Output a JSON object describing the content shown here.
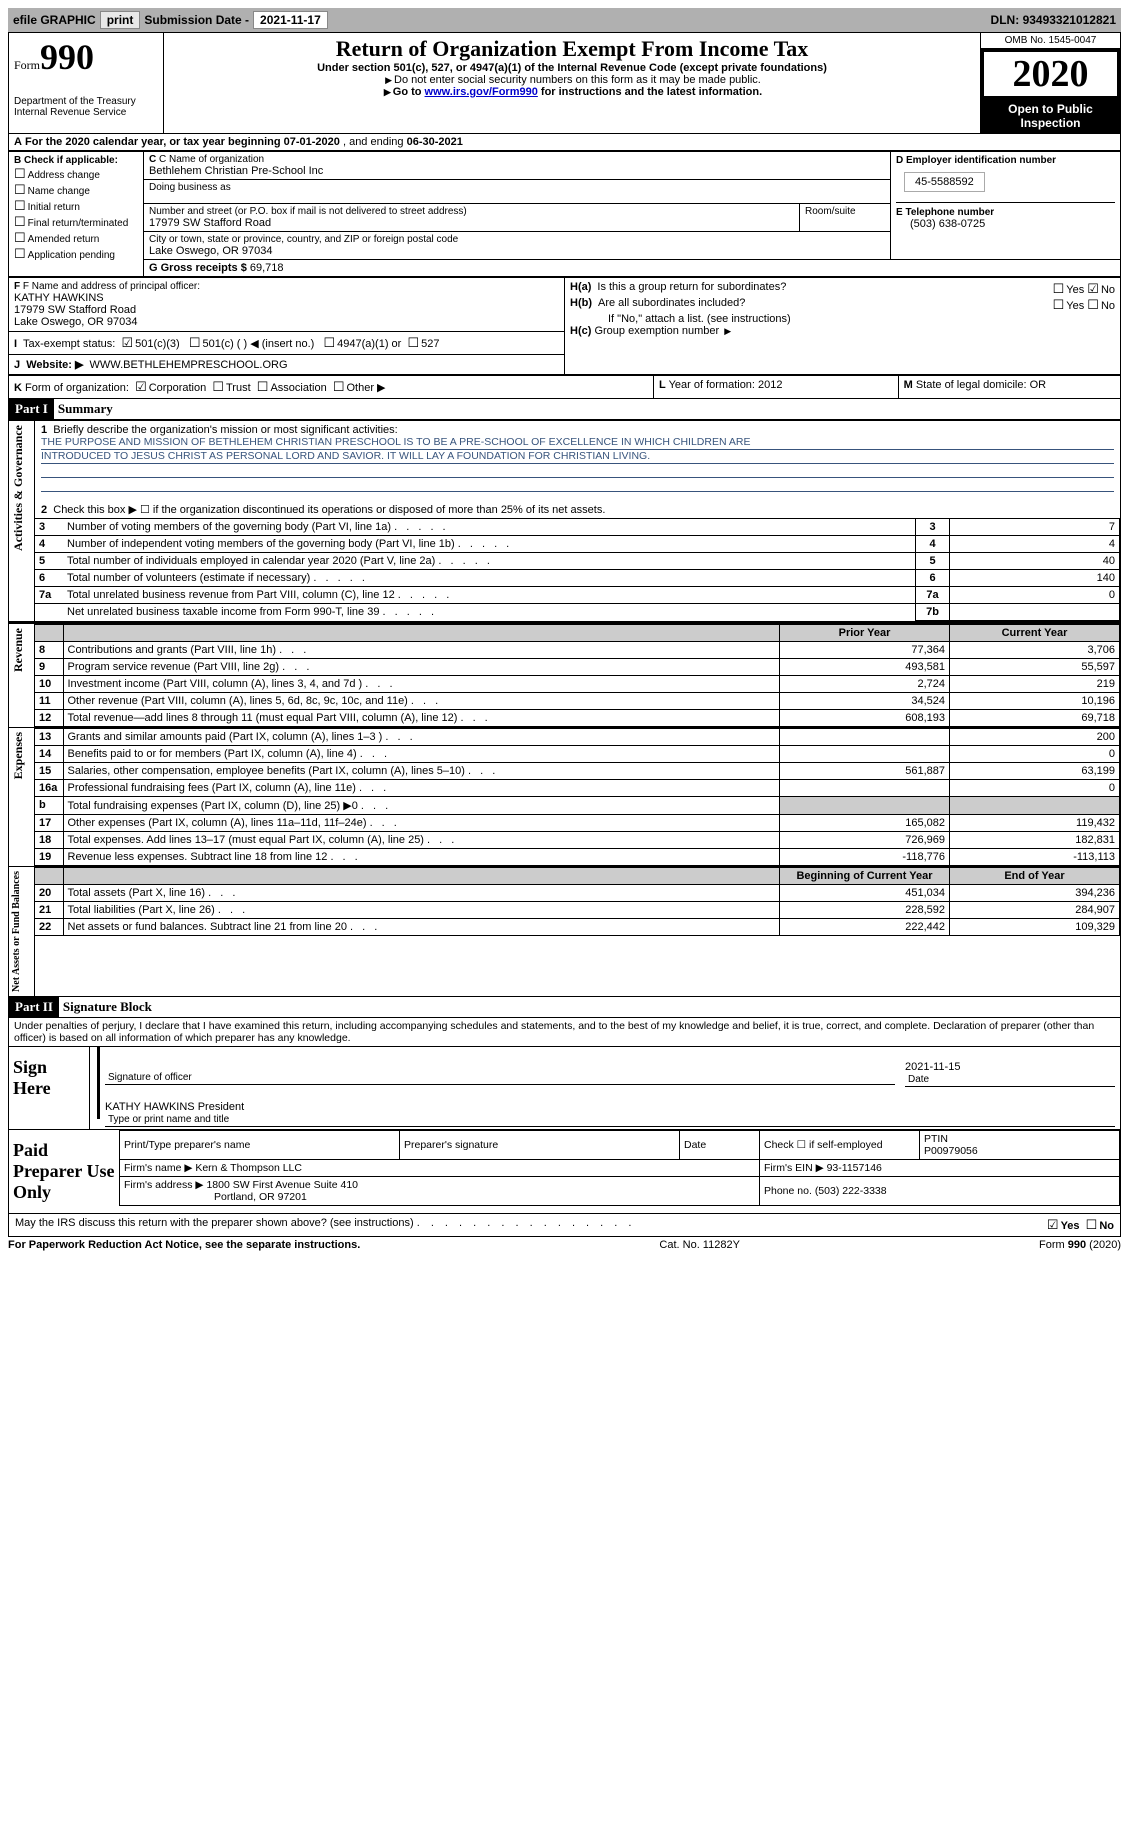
{
  "toolbar": {
    "efile_label": "efile GRAPHIC",
    "print_label": "print",
    "sub_label": "Submission Date -",
    "sub_date": "2021-11-17",
    "dln_label": "DLN:",
    "dln": "93493321012821"
  },
  "header": {
    "form_word": "Form",
    "form_num": "990",
    "dept1": "Department of the Treasury",
    "dept2": "Internal Revenue Service",
    "title": "Return of Organization Exempt From Income Tax",
    "subtitle": "Under section 501(c), 527, or 4947(a)(1) of the Internal Revenue Code (except private foundations)",
    "note1": "Do not enter social security numbers on this form as it may be made public.",
    "note2_a": "Go to ",
    "note2_link": "www.irs.gov/Form990",
    "note2_b": " for instructions and the latest information.",
    "omb_label": "OMB No. 1545-0047",
    "year": "2020",
    "public1": "Open to Public",
    "public2": "Inspection"
  },
  "lineA": {
    "prefix": "A",
    "text_a": "For the 2020 calendar year, or tax year beginning ",
    "begin": "07-01-2020",
    "text_b": " , and ending ",
    "end": "06-30-2021"
  },
  "boxB": {
    "header": "B Check if applicable:",
    "items": [
      "Address change",
      "Name change",
      "Initial return",
      "Final return/terminated",
      "Amended return",
      "Application pending"
    ]
  },
  "boxC": {
    "name_label": "C Name of organization",
    "name": "Bethlehem Christian Pre-School Inc",
    "dba_label": "Doing business as",
    "dba": "",
    "street_label": "Number and street (or P.O. box if mail is not delivered to street address)",
    "room_label": "Room/suite",
    "street": "17979 SW Stafford Road",
    "city_label": "City or town, state or province, country, and ZIP or foreign postal code",
    "city": "Lake Oswego, OR  97034"
  },
  "boxD": {
    "label": "D Employer identification number",
    "value": "45-5588592"
  },
  "boxE": {
    "label": "E Telephone number",
    "value": "(503) 638-0725"
  },
  "boxG": {
    "label": "G Gross receipts $",
    "value": "69,718"
  },
  "boxF": {
    "label": "F Name and address of principal officer:",
    "name": "KATHY HAWKINS",
    "street": "17979 SW Stafford Road",
    "city": "Lake Oswego, OR  97034"
  },
  "boxH": {
    "a_label": "H(a)",
    "a_text": "Is this a group return for subordinates?",
    "a_yes": "Yes",
    "a_no": "No",
    "b_label": "H(b)",
    "b_text": "Are all subordinates included?",
    "b_note": "If \"No,\" attach a list. (see instructions)",
    "c_label": "H(c)",
    "c_text": "Group exemption number"
  },
  "lineI": {
    "label": "I",
    "text": "Tax-exempt status:",
    "opt1": "501(c)(3)",
    "opt2": "501(c) (  ) ◀ (insert no.)",
    "opt3": "4947(a)(1) or",
    "opt4": "527"
  },
  "lineJ": {
    "label": "J",
    "text": "Website: ▶",
    "value": "WWW.BETHLEHEMPRESCHOOL.ORG"
  },
  "lineK": {
    "label": "K",
    "text": "Form of organization:",
    "opts": [
      "Corporation",
      "Trust",
      "Association",
      "Other ▶"
    ]
  },
  "lineL": {
    "label": "L",
    "text": "Year of formation:",
    "value": "2012"
  },
  "lineM": {
    "label": "M",
    "text": "State of legal domicile:",
    "value": "OR"
  },
  "part1": {
    "tag": "Part I",
    "title": "Summary",
    "q1_label": "1",
    "q1_text": "Briefly describe the organization's mission or most significant activities:",
    "mission1": "THE PURPOSE AND MISSION OF BETHLEHEM CHRISTIAN PRESCHOOL IS TO BE A PRE-SCHOOL OF EXCELLENCE IN WHICH CHILDREN ARE",
    "mission2": "INTRODUCED TO JESUS CHRIST AS PERSONAL LORD AND SAVIOR. IT WILL LAY A FOUNDATION FOR CHRISTIAN LIVING.",
    "q2_label": "2",
    "q2_text": "Check this box ▶ ☐  if the organization discontinued its operations or disposed of more than 25% of its net assets.",
    "vert_gov": "Activities & Governance",
    "vert_rev": "Revenue",
    "vert_exp": "Expenses",
    "vert_net": "Net Assets or Fund Balances",
    "col_prior": "Prior Year",
    "col_curr": "Current Year",
    "col_beg": "Beginning of Current Year",
    "col_end": "End of Year",
    "rows_gov": [
      {
        "n": "3",
        "t": "Number of voting members of the governing body (Part VI, line 1a)",
        "box": "3",
        "v": "7"
      },
      {
        "n": "4",
        "t": "Number of independent voting members of the governing body (Part VI, line 1b)",
        "box": "4",
        "v": "4"
      },
      {
        "n": "5",
        "t": "Total number of individuals employed in calendar year 2020 (Part V, line 2a)",
        "box": "5",
        "v": "40"
      },
      {
        "n": "6",
        "t": "Total number of volunteers (estimate if necessary)",
        "box": "6",
        "v": "140"
      },
      {
        "n": "7a",
        "t": "Total unrelated business revenue from Part VIII, column (C), line 12",
        "box": "7a",
        "v": "0"
      },
      {
        "n": "",
        "t": "Net unrelated business taxable income from Form 990-T, line 39",
        "box": "7b",
        "v": ""
      }
    ],
    "rows_rev": [
      {
        "n": "8",
        "t": "Contributions and grants (Part VIII, line 1h)",
        "p": "77,364",
        "c": "3,706"
      },
      {
        "n": "9",
        "t": "Program service revenue (Part VIII, line 2g)",
        "p": "493,581",
        "c": "55,597"
      },
      {
        "n": "10",
        "t": "Investment income (Part VIII, column (A), lines 3, 4, and 7d )",
        "p": "2,724",
        "c": "219"
      },
      {
        "n": "11",
        "t": "Other revenue (Part VIII, column (A), lines 5, 6d, 8c, 9c, 10c, and 11e)",
        "p": "34,524",
        "c": "10,196"
      },
      {
        "n": "12",
        "t": "Total revenue—add lines 8 through 11 (must equal Part VIII, column (A), line 12)",
        "p": "608,193",
        "c": "69,718"
      }
    ],
    "rows_exp": [
      {
        "n": "13",
        "t": "Grants and similar amounts paid (Part IX, column (A), lines 1–3 )",
        "p": "",
        "c": "200"
      },
      {
        "n": "14",
        "t": "Benefits paid to or for members (Part IX, column (A), line 4)",
        "p": "",
        "c": "0"
      },
      {
        "n": "15",
        "t": "Salaries, other compensation, employee benefits (Part IX, column (A), lines 5–10)",
        "p": "561,887",
        "c": "63,199"
      },
      {
        "n": "16a",
        "t": "Professional fundraising fees (Part IX, column (A), line 11e)",
        "p": "",
        "c": "0"
      },
      {
        "n": "b",
        "t": "Total fundraising expenses (Part IX, column (D), line 25) ▶0",
        "p": "SHADE",
        "c": "SHADE"
      },
      {
        "n": "17",
        "t": "Other expenses (Part IX, column (A), lines 11a–11d, 11f–24e)",
        "p": "165,082",
        "c": "119,432"
      },
      {
        "n": "18",
        "t": "Total expenses. Add lines 13–17 (must equal Part IX, column (A), line 25)",
        "p": "726,969",
        "c": "182,831"
      },
      {
        "n": "19",
        "t": "Revenue less expenses. Subtract line 18 from line 12",
        "p": "-118,776",
        "c": "-113,113"
      }
    ],
    "rows_net": [
      {
        "n": "20",
        "t": "Total assets (Part X, line 16)",
        "p": "451,034",
        "c": "394,236"
      },
      {
        "n": "21",
        "t": "Total liabilities (Part X, line 26)",
        "p": "228,592",
        "c": "284,907"
      },
      {
        "n": "22",
        "t": "Net assets or fund balances. Subtract line 21 from line 20",
        "p": "222,442",
        "c": "109,329"
      }
    ]
  },
  "part2": {
    "tag": "Part II",
    "title": "Signature Block",
    "penalty": "Under penalties of perjury, I declare that I have examined this return, including accompanying schedules and statements, and to the best of my knowledge and belief, it is true, correct, and complete. Declaration of preparer (other than officer) is based on all information of which preparer has any knowledge."
  },
  "sign": {
    "here_label": "Sign Here",
    "sig_label": "Signature of officer",
    "date_label": "Date",
    "date_value": "2021-11-15",
    "name_value": "KATHY HAWKINS  President",
    "name_label": "Type or print name and title"
  },
  "preparer": {
    "section_label": "Paid Preparer Use Only",
    "print_label": "Print/Type preparer's name",
    "sig_label": "Preparer's signature",
    "date_label": "Date",
    "check_label": "Check ☐ if self-employed",
    "ptin_label": "PTIN",
    "ptin": "P00979056",
    "firm_name_label": "Firm's name    ▶",
    "firm_name": "Kern & Thompson LLC",
    "firm_ein_label": "Firm's EIN ▶",
    "firm_ein": "93-1157146",
    "firm_addr_label": "Firm's address ▶",
    "firm_addr1": "1800 SW First Avenue Suite 410",
    "firm_addr2": "Portland, OR  97201",
    "phone_label": "Phone no.",
    "phone": "(503) 222-3338",
    "discuss": "May the IRS discuss this return with the preparer shown above? (see instructions)",
    "yes": "Yes",
    "no": "No"
  },
  "footer": {
    "left": "For Paperwork Reduction Act Notice, see the separate instructions.",
    "mid": "Cat. No. 11282Y",
    "right": "Form 990 (2020)"
  }
}
